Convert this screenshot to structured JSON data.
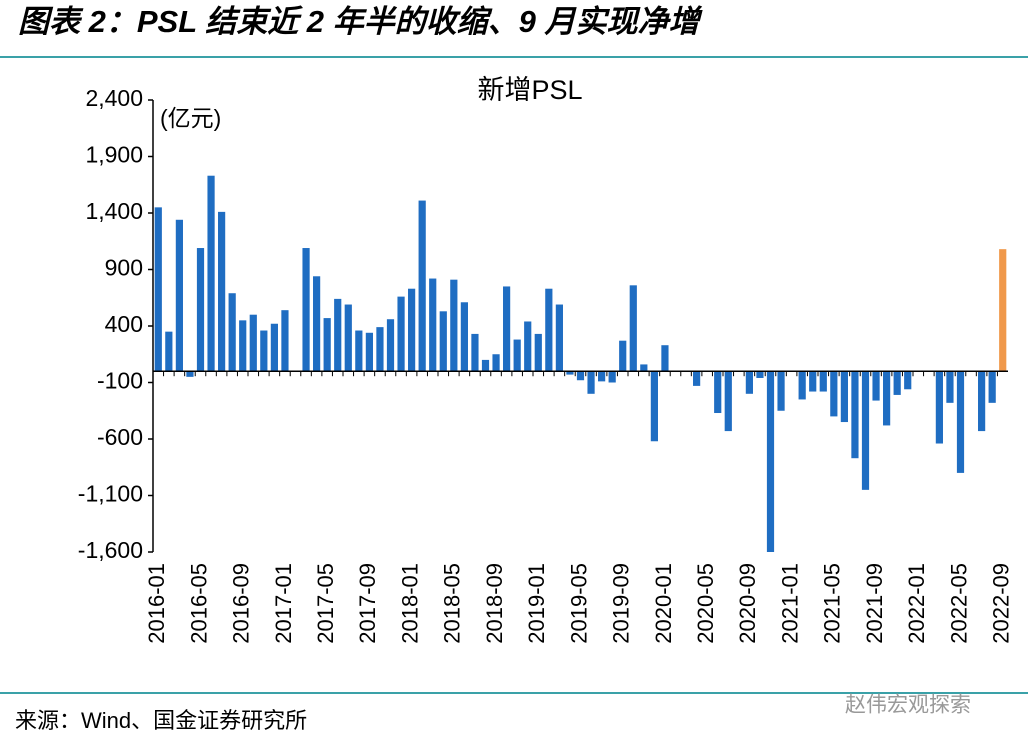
{
  "header": {
    "title": "图表 2：PSL 结束近 2 年半的收缩、9 月实现净增"
  },
  "chart_data": {
    "type": "bar",
    "title": "新增PSL",
    "y_label": "(亿元)",
    "categories": [
      "2016-01",
      null,
      null,
      null,
      "2016-05",
      null,
      null,
      null,
      "2016-09",
      null,
      null,
      null,
      "2017-01",
      null,
      null,
      null,
      "2017-05",
      null,
      null,
      null,
      "2017-09",
      null,
      null,
      null,
      "2018-01",
      null,
      null,
      null,
      "2018-05",
      null,
      null,
      null,
      "2018-09",
      null,
      null,
      null,
      "2019-01",
      null,
      null,
      null,
      "2019-05",
      null,
      null,
      null,
      "2019-09",
      null,
      null,
      null,
      "2020-01",
      null,
      null,
      null,
      "2020-05",
      null,
      null,
      null,
      "2020-09",
      null,
      null,
      null,
      "2021-01",
      null,
      null,
      null,
      "2021-05",
      null,
      null,
      null,
      "2021-09",
      null,
      null,
      null,
      "2022-01",
      null,
      null,
      null,
      "2022-05",
      null,
      null,
      null,
      "2022-09"
    ],
    "values": [
      1450,
      350,
      1340,
      -50,
      1090,
      1730,
      1410,
      690,
      450,
      500,
      360,
      420,
      540,
      0,
      1090,
      840,
      470,
      640,
      590,
      360,
      340,
      390,
      460,
      660,
      730,
      1510,
      820,
      530,
      810,
      610,
      330,
      100,
      150,
      750,
      280,
      440,
      330,
      730,
      590,
      -30,
      -80,
      -200,
      -90,
      -100,
      270,
      760,
      60,
      -620,
      230,
      0,
      0,
      -130,
      0,
      -370,
      -530,
      0,
      -200,
      -60,
      -1600,
      -350,
      0,
      -250,
      -180,
      -180,
      -400,
      -450,
      -770,
      -1050,
      -260,
      -480,
      -210,
      -160,
      0,
      0,
      -640,
      -280,
      -900,
      0,
      -530,
      -280,
      1080
    ],
    "color": "#1f6dc2",
    "highlight_color": "#f0994b",
    "highlight_index": 80,
    "ylim": [
      -1600,
      2400
    ],
    "yticks": [
      {
        "value": -1600,
        "label": "-1,600"
      },
      {
        "value": -1100,
        "label": "-1,100"
      },
      -600,
      -100,
      400,
      900,
      {
        "value": 1400,
        "label": "1,400"
      },
      {
        "value": 1900,
        "label": "1,900"
      },
      {
        "value": 2400,
        "label": "2,400"
      }
    ]
  },
  "footer": {
    "source": "来源：Wind、国金证券研究所",
    "watermark": "赵伟宏观探索"
  }
}
